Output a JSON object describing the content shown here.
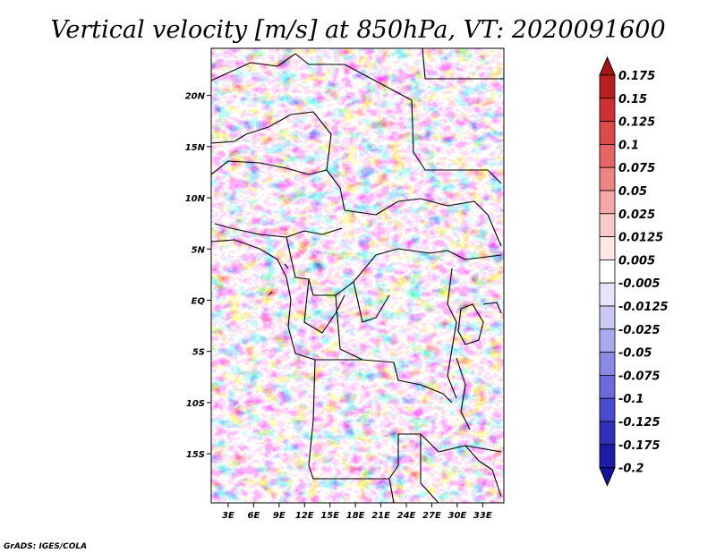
{
  "chart_data": {
    "type": "heatmap",
    "title": "Vertical velocity [m/s] at 850hPa, VT: 2020091600",
    "variable": "Vertical velocity",
    "units": "m/s",
    "level": "850hPa",
    "valid_time": "2020091600",
    "x_ticks": [
      "3E",
      "6E",
      "9E",
      "12E",
      "15E",
      "18E",
      "21E",
      "24E",
      "27E",
      "30E",
      "33E"
    ],
    "x_tick_values": [
      3,
      6,
      9,
      12,
      15,
      18,
      21,
      24,
      27,
      30,
      33
    ],
    "y_ticks": [
      "20N",
      "15N",
      "10N",
      "5N",
      "EQ",
      "5S",
      "10S",
      "15S"
    ],
    "y_tick_values": [
      20,
      15,
      10,
      5,
      0,
      -5,
      -10,
      -15
    ],
    "lon_range": [
      1.0,
      35.5
    ],
    "lat_range": [
      -19.8,
      24.6
    ],
    "colorbar": {
      "labels": [
        "0.175",
        "0.15",
        "0.125",
        "0.1",
        "0.075",
        "0.05",
        "0.025",
        "0.0125",
        "0.005",
        "-0.005",
        "-0.0125",
        "-0.025",
        "-0.05",
        "-0.075",
        "-0.1",
        "-0.125",
        "-0.175",
        "-0.2"
      ],
      "colors": [
        "#a51515",
        "#b82020",
        "#cc3030",
        "#dd4a4a",
        "#e66565",
        "#ee8585",
        "#f5a8a8",
        "#f9caca",
        "#fde7e7",
        "#ffffff",
        "#e6e6fb",
        "#c9c9f4",
        "#a9a9ee",
        "#8a8ae6",
        "#6b6bdc",
        "#4c4cd0",
        "#3030bb",
        "#1b1ba5",
        "#12129a"
      ],
      "extend": "both"
    },
    "grid": false
  },
  "credit": "GrADS: IGES/COLA"
}
